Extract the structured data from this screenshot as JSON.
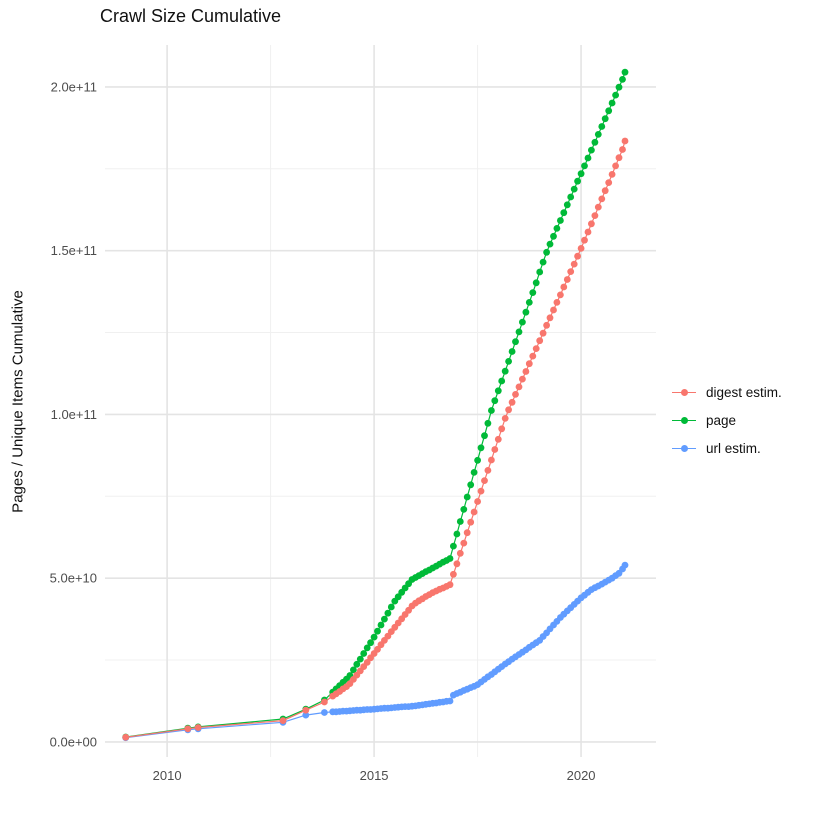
{
  "chart_data": {
    "type": "scatter",
    "title": "Crawl Size Cumulative",
    "xlabel": "",
    "ylabel": "Pages / Unique Items Cumulative",
    "grid": "on",
    "legend_position": "right",
    "x_domain": [
      2008.5,
      2021.81
    ],
    "y_domain_billions": [
      -4.6,
      212.8
    ],
    "x_ticks": [
      {
        "v": 2010,
        "label": "2010"
      },
      {
        "v": 2015,
        "label": "2015"
      },
      {
        "v": 2020,
        "label": "2020"
      }
    ],
    "x_minor_ticks": [
      2012.5,
      2017.5
    ],
    "y_ticks": [
      {
        "v": 0,
        "label": "0.0e+00"
      },
      {
        "v": 50,
        "label": "5.0e+10"
      },
      {
        "v": 100,
        "label": "1.0e+11"
      },
      {
        "v": 150,
        "label": "1.5e+11"
      },
      {
        "v": 200,
        "label": "2.0e+11"
      }
    ],
    "y_minor_ticks": [
      25,
      75,
      125,
      175
    ],
    "colors": {
      "digest": "#F8766D",
      "page": "#00BA38",
      "url": "#619CFF",
      "grid_major": "#e4e4e4",
      "grid_minor": "#f0f0f0",
      "axis_text": "#4d4d4d"
    },
    "legend": [
      {
        "name": "digest estim.",
        "color": "#F8766D"
      },
      {
        "name": "page",
        "color": "#00BA38"
      },
      {
        "name": "url estim.",
        "color": "#619CFF"
      }
    ],
    "series": [
      {
        "name": "url estim.",
        "color": "#619CFF",
        "points_year_billions": [
          [
            2009.0,
            1.3
          ],
          [
            2010.5,
            3.7
          ],
          [
            2010.75,
            4.0
          ],
          [
            2012.8,
            6.0
          ],
          [
            2013.35,
            8.2
          ],
          [
            2013.8,
            9.0
          ],
          [
            2014.0,
            9.2
          ],
          [
            2014.083,
            9.2
          ],
          [
            2014.167,
            9.3
          ],
          [
            2014.25,
            9.4
          ],
          [
            2014.333,
            9.4
          ],
          [
            2014.417,
            9.5
          ],
          [
            2014.5,
            9.6
          ],
          [
            2014.583,
            9.7
          ],
          [
            2014.667,
            9.7
          ],
          [
            2014.75,
            9.8
          ],
          [
            2014.833,
            9.9
          ],
          [
            2014.917,
            9.9
          ],
          [
            2015.0,
            10.0
          ],
          [
            2015.083,
            10.1
          ],
          [
            2015.167,
            10.2
          ],
          [
            2015.25,
            10.3
          ],
          [
            2015.333,
            10.3
          ],
          [
            2015.417,
            10.4
          ],
          [
            2015.5,
            10.5
          ],
          [
            2015.583,
            10.6
          ],
          [
            2015.667,
            10.7
          ],
          [
            2015.75,
            10.8
          ],
          [
            2015.833,
            10.8
          ],
          [
            2015.917,
            10.9
          ],
          [
            2016.0,
            11.0
          ],
          [
            2016.083,
            11.2
          ],
          [
            2016.167,
            11.3
          ],
          [
            2016.25,
            11.5
          ],
          [
            2016.333,
            11.6
          ],
          [
            2016.417,
            11.8
          ],
          [
            2016.5,
            11.9
          ],
          [
            2016.583,
            12.1
          ],
          [
            2016.667,
            12.2
          ],
          [
            2016.75,
            12.4
          ],
          [
            2016.833,
            12.5
          ],
          [
            2016.917,
            14.3
          ],
          [
            2017.0,
            14.8
          ],
          [
            2017.083,
            15.2
          ],
          [
            2017.167,
            15.7
          ],
          [
            2017.25,
            16.1
          ],
          [
            2017.333,
            16.6
          ],
          [
            2017.417,
            17.0
          ],
          [
            2017.5,
            17.5
          ],
          [
            2017.583,
            18.3
          ],
          [
            2017.667,
            19.1
          ],
          [
            2017.75,
            19.9
          ],
          [
            2017.833,
            20.6
          ],
          [
            2017.917,
            21.4
          ],
          [
            2018.0,
            22.2
          ],
          [
            2018.083,
            23.0
          ],
          [
            2018.167,
            23.8
          ],
          [
            2018.25,
            24.5
          ],
          [
            2018.333,
            25.3
          ],
          [
            2018.417,
            26.0
          ],
          [
            2018.5,
            26.7
          ],
          [
            2018.583,
            27.4
          ],
          [
            2018.667,
            28.1
          ],
          [
            2018.75,
            28.9
          ],
          [
            2018.833,
            29.6
          ],
          [
            2018.917,
            30.3
          ],
          [
            2019.0,
            31.0
          ],
          [
            2019.083,
            32.2
          ],
          [
            2019.167,
            33.3
          ],
          [
            2019.25,
            34.5
          ],
          [
            2019.333,
            35.7
          ],
          [
            2019.417,
            36.8
          ],
          [
            2019.5,
            38.0
          ],
          [
            2019.583,
            39.0
          ],
          [
            2019.667,
            40.0
          ],
          [
            2019.75,
            41.0
          ],
          [
            2019.833,
            42.0
          ],
          [
            2019.917,
            43.0
          ],
          [
            2020.0,
            44.0
          ],
          [
            2020.083,
            44.8
          ],
          [
            2020.167,
            45.7
          ],
          [
            2020.25,
            46.5
          ],
          [
            2020.333,
            47.1
          ],
          [
            2020.417,
            47.6
          ],
          [
            2020.5,
            48.2
          ],
          [
            2020.583,
            48.8
          ],
          [
            2020.667,
            49.4
          ],
          [
            2020.75,
            50.0
          ],
          [
            2020.833,
            50.8
          ],
          [
            2020.917,
            51.5
          ],
          [
            2021.0,
            52.8
          ],
          [
            2021.06,
            54.0
          ]
        ]
      },
      {
        "name": "page",
        "color": "#00BA38",
        "points_year_billions": [
          [
            2009.0,
            1.5
          ],
          [
            2010.5,
            4.2
          ],
          [
            2010.75,
            4.6
          ],
          [
            2012.8,
            7.0
          ],
          [
            2013.35,
            10.0
          ],
          [
            2013.8,
            12.8
          ],
          [
            2014.0,
            15.2
          ],
          [
            2014.083,
            16.2
          ],
          [
            2014.167,
            17.2
          ],
          [
            2014.25,
            18.2
          ],
          [
            2014.333,
            19.2
          ],
          [
            2014.417,
            20.3
          ],
          [
            2014.5,
            22.0
          ],
          [
            2014.583,
            23.7
          ],
          [
            2014.667,
            25.3
          ],
          [
            2014.75,
            27.0
          ],
          [
            2014.833,
            28.7
          ],
          [
            2014.917,
            30.3
          ],
          [
            2015.0,
            32.0
          ],
          [
            2015.083,
            33.8
          ],
          [
            2015.167,
            35.7
          ],
          [
            2015.25,
            37.5
          ],
          [
            2015.333,
            39.3
          ],
          [
            2015.417,
            41.2
          ],
          [
            2015.5,
            43.0
          ],
          [
            2015.583,
            44.3
          ],
          [
            2015.667,
            45.7
          ],
          [
            2015.75,
            47.0
          ],
          [
            2015.833,
            48.3
          ],
          [
            2015.917,
            49.6
          ],
          [
            2016.0,
            50.2
          ],
          [
            2016.083,
            50.8
          ],
          [
            2016.167,
            51.4
          ],
          [
            2016.25,
            52.0
          ],
          [
            2016.333,
            52.5
          ],
          [
            2016.417,
            53.1
          ],
          [
            2016.5,
            53.7
          ],
          [
            2016.583,
            54.3
          ],
          [
            2016.667,
            54.9
          ],
          [
            2016.75,
            55.4
          ],
          [
            2016.833,
            56.0
          ],
          [
            2016.917,
            59.8
          ],
          [
            2017.0,
            63.5
          ],
          [
            2017.083,
            67.3
          ],
          [
            2017.167,
            71.0
          ],
          [
            2017.25,
            74.8
          ],
          [
            2017.333,
            78.5
          ],
          [
            2017.417,
            82.3
          ],
          [
            2017.5,
            86.0
          ],
          [
            2017.583,
            89.8
          ],
          [
            2017.667,
            93.5
          ],
          [
            2017.75,
            97.3
          ],
          [
            2017.833,
            101.2
          ],
          [
            2017.917,
            104.2
          ],
          [
            2018.0,
            107.2
          ],
          [
            2018.083,
            110.2
          ],
          [
            2018.167,
            113.2
          ],
          [
            2018.25,
            116.2
          ],
          [
            2018.333,
            119.2
          ],
          [
            2018.417,
            122.2
          ],
          [
            2018.5,
            125.2
          ],
          [
            2018.583,
            128.2
          ],
          [
            2018.667,
            131.2
          ],
          [
            2018.75,
            134.2
          ],
          [
            2018.833,
            137.2
          ],
          [
            2018.917,
            140.2
          ],
          [
            2019.0,
            143.5
          ],
          [
            2019.083,
            146.5
          ],
          [
            2019.167,
            149.5
          ],
          [
            2019.25,
            152.0
          ],
          [
            2019.333,
            154.4
          ],
          [
            2019.417,
            156.8
          ],
          [
            2019.5,
            159.2
          ],
          [
            2019.583,
            161.6
          ],
          [
            2019.667,
            164.0
          ],
          [
            2019.75,
            166.4
          ],
          [
            2019.833,
            168.8
          ],
          [
            2019.917,
            171.2
          ],
          [
            2020.0,
            173.5
          ],
          [
            2020.083,
            175.9
          ],
          [
            2020.167,
            178.3
          ],
          [
            2020.25,
            180.7
          ],
          [
            2020.333,
            183.1
          ],
          [
            2020.417,
            185.5
          ],
          [
            2020.5,
            187.9
          ],
          [
            2020.583,
            190.3
          ],
          [
            2020.667,
            192.7
          ],
          [
            2020.75,
            195.1
          ],
          [
            2020.833,
            197.5
          ],
          [
            2020.917,
            199.9
          ],
          [
            2021.0,
            202.3
          ],
          [
            2021.06,
            204.5
          ]
        ]
      },
      {
        "name": "digest estim.",
        "color": "#F8766D",
        "points_year_billions": [
          [
            2009.0,
            1.4
          ],
          [
            2010.5,
            4.0
          ],
          [
            2010.75,
            4.4
          ],
          [
            2012.8,
            6.5
          ],
          [
            2013.35,
            9.7
          ],
          [
            2013.8,
            12.2
          ],
          [
            2014.0,
            14.0
          ],
          [
            2014.083,
            14.7
          ],
          [
            2014.167,
            15.4
          ],
          [
            2014.25,
            16.2
          ],
          [
            2014.333,
            16.9
          ],
          [
            2014.417,
            17.8
          ],
          [
            2014.5,
            19.1
          ],
          [
            2014.583,
            20.4
          ],
          [
            2014.667,
            21.7
          ],
          [
            2014.75,
            23.0
          ],
          [
            2014.833,
            24.3
          ],
          [
            2014.917,
            25.7
          ],
          [
            2015.0,
            27.0
          ],
          [
            2015.083,
            28.3
          ],
          [
            2015.167,
            29.7
          ],
          [
            2015.25,
            31.0
          ],
          [
            2015.333,
            32.3
          ],
          [
            2015.417,
            33.7
          ],
          [
            2015.5,
            35.0
          ],
          [
            2015.583,
            36.3
          ],
          [
            2015.667,
            37.6
          ],
          [
            2015.75,
            38.9
          ],
          [
            2015.833,
            40.2
          ],
          [
            2015.917,
            41.5
          ],
          [
            2016.0,
            42.4
          ],
          [
            2016.083,
            43.1
          ],
          [
            2016.167,
            43.7
          ],
          [
            2016.25,
            44.4
          ],
          [
            2016.333,
            45.0
          ],
          [
            2016.417,
            45.6
          ],
          [
            2016.5,
            46.1
          ],
          [
            2016.583,
            46.6
          ],
          [
            2016.667,
            47.0
          ],
          [
            2016.75,
            47.5
          ],
          [
            2016.833,
            48.0
          ],
          [
            2016.917,
            51.2
          ],
          [
            2017.0,
            54.4
          ],
          [
            2017.083,
            57.6
          ],
          [
            2017.167,
            60.7
          ],
          [
            2017.25,
            63.9
          ],
          [
            2017.333,
            67.1
          ],
          [
            2017.417,
            70.2
          ],
          [
            2017.5,
            73.4
          ],
          [
            2017.583,
            76.6
          ],
          [
            2017.667,
            79.8
          ],
          [
            2017.75,
            82.9
          ],
          [
            2017.833,
            86.1
          ],
          [
            2017.917,
            89.3
          ],
          [
            2018.0,
            92.4
          ],
          [
            2018.083,
            95.6
          ],
          [
            2018.167,
            98.8
          ],
          [
            2018.25,
            101.4
          ],
          [
            2018.333,
            103.7
          ],
          [
            2018.417,
            106.1
          ],
          [
            2018.5,
            108.4
          ],
          [
            2018.583,
            110.8
          ],
          [
            2018.667,
            113.1
          ],
          [
            2018.75,
            115.5
          ],
          [
            2018.833,
            117.8
          ],
          [
            2018.917,
            120.1
          ],
          [
            2019.0,
            122.5
          ],
          [
            2019.083,
            124.8
          ],
          [
            2019.167,
            127.2
          ],
          [
            2019.25,
            129.5
          ],
          [
            2019.333,
            131.9
          ],
          [
            2019.417,
            134.2
          ],
          [
            2019.5,
            136.5
          ],
          [
            2019.583,
            138.9
          ],
          [
            2019.667,
            141.2
          ],
          [
            2019.75,
            143.6
          ],
          [
            2019.833,
            145.9
          ],
          [
            2019.917,
            148.3
          ],
          [
            2020.0,
            150.7
          ],
          [
            2020.083,
            153.2
          ],
          [
            2020.167,
            155.7
          ],
          [
            2020.25,
            158.2
          ],
          [
            2020.333,
            160.7
          ],
          [
            2020.417,
            163.3
          ],
          [
            2020.5,
            165.8
          ],
          [
            2020.583,
            168.3
          ],
          [
            2020.667,
            170.8
          ],
          [
            2020.75,
            173.3
          ],
          [
            2020.833,
            175.9
          ],
          [
            2020.917,
            178.4
          ],
          [
            2021.0,
            180.9
          ],
          [
            2021.06,
            183.5
          ]
        ]
      }
    ]
  }
}
